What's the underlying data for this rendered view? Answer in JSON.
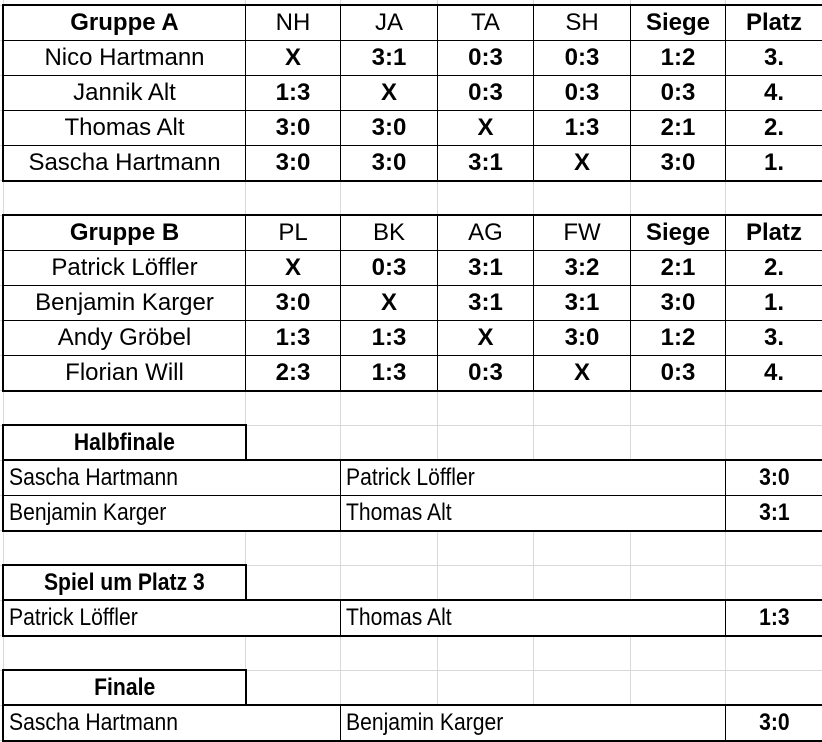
{
  "groups": [
    {
      "title": "Gruppe A",
      "columns": [
        "NH",
        "JA",
        "TA",
        "SH",
        "Siege",
        "Platz"
      ],
      "rows": [
        {
          "name": "Nico Hartmann",
          "results": [
            "X",
            "3:1",
            "0:3",
            "0:3"
          ],
          "siege": "1:2",
          "platz": "3."
        },
        {
          "name": "Jannik Alt",
          "results": [
            "1:3",
            "X",
            "0:3",
            "0:3"
          ],
          "siege": "0:3",
          "platz": "4."
        },
        {
          "name": "Thomas Alt",
          "results": [
            "3:0",
            "3:0",
            "X",
            "1:3"
          ],
          "siege": "2:1",
          "platz": "2."
        },
        {
          "name": "Sascha Hartmann",
          "results": [
            "3:0",
            "3:0",
            "3:1",
            "X"
          ],
          "siege": "3:0",
          "platz": "1."
        }
      ]
    },
    {
      "title": "Gruppe B",
      "columns": [
        "PL",
        "BK",
        "AG",
        "FW",
        "Siege",
        "Platz"
      ],
      "rows": [
        {
          "name": "Patrick Löffler",
          "results": [
            "X",
            "0:3",
            "3:1",
            "3:2"
          ],
          "siege": "2:1",
          "platz": "2."
        },
        {
          "name": "Benjamin Karger",
          "results": [
            "3:0",
            "X",
            "3:1",
            "3:1"
          ],
          "siege": "3:0",
          "platz": "1."
        },
        {
          "name": "Andy Gröbel",
          "results": [
            "1:3",
            "1:3",
            "X",
            "3:0"
          ],
          "siege": "1:2",
          "platz": "3."
        },
        {
          "name": "Florian Will",
          "results": [
            "2:3",
            "1:3",
            "0:3",
            "X"
          ],
          "siege": "0:3",
          "platz": "4."
        }
      ]
    }
  ],
  "knockout": [
    {
      "title": "Halbfinale",
      "matches": [
        {
          "home": "Sascha Hartmann",
          "away": "Patrick Löffler",
          "score": "3:0"
        },
        {
          "home": "Benjamin Karger",
          "away": "Thomas Alt",
          "score": "3:1"
        }
      ]
    },
    {
      "title": "Spiel um Platz 3",
      "matches": [
        {
          "home": "Patrick Löffler",
          "away": "Thomas Alt",
          "score": "1:3"
        }
      ]
    },
    {
      "title": "Finale",
      "matches": [
        {
          "home": "Sascha Hartmann",
          "away": "Benjamin Karger",
          "score": "3:0"
        }
      ]
    }
  ]
}
